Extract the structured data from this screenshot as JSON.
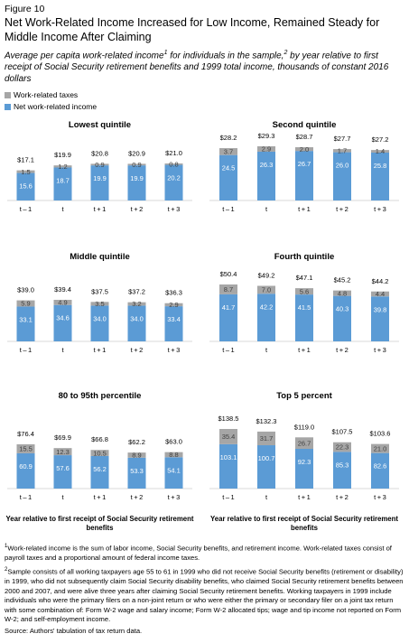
{
  "figure_label": "Figure 10",
  "title": "Net Work-Related Income Increased for Low Income, Remained Steady for Middle Income After Claiming",
  "subtitle": {
    "part1": "Average per capita work-related income",
    "sup1": "1",
    "part2": " for individuals in the sample,",
    "sup2": "2",
    "part3": " by year relative to first receipt of Social Security retirement benefits and 1999 total income, thousands of constant 2016 dollars"
  },
  "colors": {
    "taxes": "#a6a6a6",
    "net": "#5b9bd5"
  },
  "chart_data": [
    {
      "type": "bar",
      "stacked": true,
      "title": "Lowest quintile",
      "categories": [
        "t – 1",
        "t",
        "t + 1",
        "t + 2",
        "t + 3"
      ],
      "series": [
        {
          "name": "Net work-related income",
          "values": [
            "15.6",
            "18.7",
            "19.9",
            "19.9",
            "20.2"
          ]
        },
        {
          "name": "Work-related taxes",
          "values": [
            "1.5",
            "1.2",
            "0.9",
            "0.9",
            "0.8"
          ]
        }
      ],
      "totals": [
        "$17.1",
        "$19.9",
        "$20.8",
        "$20.9",
        "$21.0"
      ],
      "xlabel": ""
    },
    {
      "type": "bar",
      "stacked": true,
      "title": "Second quintile",
      "categories": [
        "t – 1",
        "t",
        "t + 1",
        "t + 2",
        "t + 3"
      ],
      "series": [
        {
          "name": "Net work-related income",
          "values": [
            "24.5",
            "26.3",
            "26.7",
            "26.0",
            "25.8"
          ]
        },
        {
          "name": "Work-related taxes",
          "values": [
            "3.7",
            "2.9",
            "2.0",
            "1.7",
            "1.4"
          ]
        }
      ],
      "totals": [
        "$28.2",
        "$29.3",
        "$28.7",
        "$27.7",
        "$27.2"
      ],
      "xlabel": ""
    },
    {
      "type": "bar",
      "stacked": true,
      "title": "Middle quintile",
      "categories": [
        "t – 1",
        "t",
        "t + 1",
        "t + 2",
        "t + 3"
      ],
      "series": [
        {
          "name": "Net work-related income",
          "values": [
            "33.1",
            "34.6",
            "34.0",
            "34.0",
            "33.4"
          ]
        },
        {
          "name": "Work-related taxes",
          "values": [
            "5.9",
            "4.9",
            "3.5",
            "3.2",
            "2.9"
          ]
        }
      ],
      "totals": [
        "$39.0",
        "$39.4",
        "$37.5",
        "$37.2",
        "$36.3"
      ],
      "xlabel": ""
    },
    {
      "type": "bar",
      "stacked": true,
      "title": "Fourth quintile",
      "categories": [
        "t – 1",
        "t",
        "t + 1",
        "t + 2",
        "t + 3"
      ],
      "series": [
        {
          "name": "Net work-related income",
          "values": [
            "41.7",
            "42.2",
            "41.5",
            "40.3",
            "39.8"
          ]
        },
        {
          "name": "Work-related taxes",
          "values": [
            "8.7",
            "7.0",
            "5.6",
            "4.8",
            "4.4"
          ]
        }
      ],
      "totals": [
        "$50.4",
        "$49.2",
        "$47.1",
        "$45.2",
        "$44.2"
      ],
      "xlabel": ""
    },
    {
      "type": "bar",
      "stacked": true,
      "title": "80 to 95th percentile",
      "categories": [
        "t – 1",
        "t",
        "t + 1",
        "t + 2",
        "t + 3"
      ],
      "series": [
        {
          "name": "Net work-related income",
          "values": [
            "60.9",
            "57.6",
            "56.2",
            "53.3",
            "54.1"
          ]
        },
        {
          "name": "Work-related taxes",
          "values": [
            "15.5",
            "12.3",
            "10.5",
            "8.9",
            "8.8"
          ]
        }
      ],
      "totals": [
        "$76.4",
        "$69.9",
        "$66.8",
        "$62.2",
        "$63.0"
      ],
      "xlabel": "Year relative to first receipt of Social Security retirement benefits"
    },
    {
      "type": "bar",
      "stacked": true,
      "title": "Top 5 percent",
      "categories": [
        "t – 1",
        "t",
        "t + 1",
        "t + 2",
        "t + 3"
      ],
      "series": [
        {
          "name": "Net work-related income",
          "values": [
            "103.1",
            "100.7",
            "92.3",
            "85.3",
            "82.6"
          ]
        },
        {
          "name": "Work-related taxes",
          "values": [
            "35.4",
            "31.7",
            "26.7",
            "22.3",
            "21.0"
          ]
        }
      ],
      "totals": [
        "$138.5",
        "$132.3",
        "$119.0",
        "$107.5",
        "$103.6"
      ],
      "xlabel": "Year relative to first receipt of Social Security retirement benefits"
    }
  ],
  "legend": {
    "taxes_label": "Work-related taxes",
    "net_label": "Net work-related income"
  },
  "footnotes": {
    "note1_sup": "1",
    "note1": "Work-related income is the sum of labor income, Social Security benefits, and retirement income. Work-related taxes consist of payroll taxes and a proportional amount of federal income taxes.",
    "note2_sup": "2",
    "note2": "Sample consists of all working taxpayers age 55 to 61 in 1999 who did not receive Social Security benefits (retirement or disability) in 1999, who did not subsequently claim Social Security disability benefits, who claimed Social Security retirement benefits between 2000 and 2007, and were alive three years after claiming Social Security retirement benefits. Working taxpayers in 1999 include individuals who were the primary filers on a non-joint return or who were either the primary or secondary filer on a joint tax return with some combination of: Form W-2 wage and salary income; Form W-2 allocated tips; wage and tip income not reported on Form W-2; and self-employment income.",
    "source": "Source: Authors' tabulation of tax return data."
  }
}
